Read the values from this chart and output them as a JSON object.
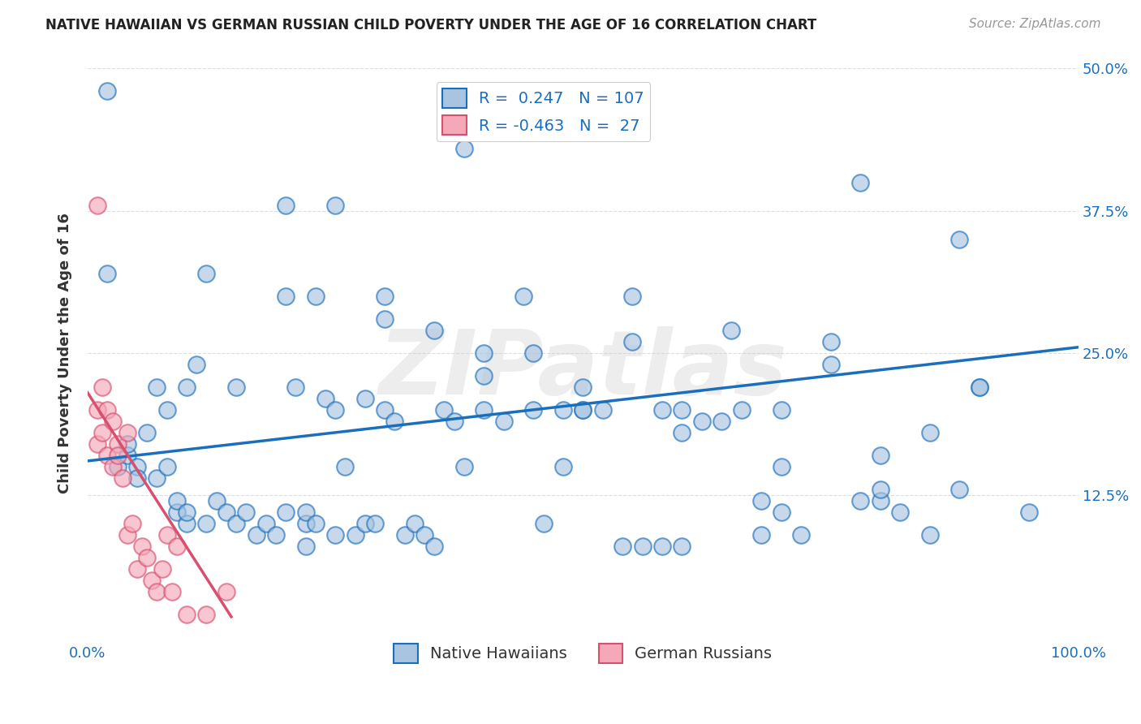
{
  "title": "NATIVE HAWAIIAN VS GERMAN RUSSIAN CHILD POVERTY UNDER THE AGE OF 16 CORRELATION CHART",
  "source": "Source: ZipAtlas.com",
  "ylabel": "Child Poverty Under the Age of 16",
  "xlim": [
    0,
    1.0
  ],
  "ylim": [
    0,
    0.5
  ],
  "xticks": [
    0.0,
    0.125,
    0.25,
    0.375,
    0.5,
    0.625,
    0.75,
    0.875,
    1.0
  ],
  "xticklabels": [
    "0.0%",
    "",
    "",
    "",
    "",
    "",
    "",
    "",
    "100.0%"
  ],
  "yticks": [
    0.0,
    0.125,
    0.25,
    0.375,
    0.5
  ],
  "yticklabels": [
    "",
    "12.5%",
    "25.0%",
    "37.5%",
    "50.0%"
  ],
  "legend1_r": "0.247",
  "legend1_n": "107",
  "legend2_r": "-0.463",
  "legend2_n": "27",
  "blue_color": "#a8c4e0",
  "pink_color": "#f4a8b8",
  "blue_line_color": "#1a6fbd",
  "pink_line_color": "#d94f6e",
  "title_color": "#222222",
  "axis_label_color": "#333333",
  "watermark": "ZIPatlas",
  "watermark_color": "#cccccc",
  "blue_scatter_x": [
    0.02,
    0.02,
    0.03,
    0.04,
    0.04,
    0.05,
    0.05,
    0.06,
    0.07,
    0.07,
    0.08,
    0.08,
    0.09,
    0.09,
    0.1,
    0.1,
    0.1,
    0.11,
    0.12,
    0.12,
    0.13,
    0.14,
    0.15,
    0.15,
    0.16,
    0.17,
    0.18,
    0.19,
    0.2,
    0.2,
    0.21,
    0.22,
    0.22,
    0.23,
    0.23,
    0.24,
    0.25,
    0.25,
    0.26,
    0.27,
    0.28,
    0.28,
    0.29,
    0.3,
    0.3,
    0.31,
    0.32,
    0.33,
    0.34,
    0.35,
    0.36,
    0.37,
    0.38,
    0.4,
    0.42,
    0.44,
    0.45,
    0.46,
    0.48,
    0.5,
    0.52,
    0.54,
    0.56,
    0.58,
    0.6,
    0.62,
    0.64,
    0.66,
    0.68,
    0.7,
    0.72,
    0.75,
    0.78,
    0.8,
    0.82,
    0.85,
    0.88,
    0.9,
    0.2,
    0.25,
    0.35,
    0.4,
    0.45,
    0.5,
    0.55,
    0.6,
    0.65,
    0.7,
    0.75,
    0.8,
    0.85,
    0.9,
    0.95,
    0.22,
    0.38,
    0.48,
    0.58,
    0.68,
    0.78,
    0.88,
    0.55,
    0.3,
    0.4,
    0.5,
    0.6,
    0.7,
    0.8
  ],
  "blue_scatter_y": [
    0.48,
    0.32,
    0.15,
    0.16,
    0.17,
    0.15,
    0.14,
    0.18,
    0.14,
    0.22,
    0.2,
    0.15,
    0.11,
    0.12,
    0.22,
    0.1,
    0.11,
    0.24,
    0.32,
    0.1,
    0.12,
    0.11,
    0.1,
    0.22,
    0.11,
    0.09,
    0.1,
    0.09,
    0.11,
    0.3,
    0.22,
    0.1,
    0.11,
    0.1,
    0.3,
    0.21,
    0.2,
    0.09,
    0.15,
    0.09,
    0.1,
    0.21,
    0.1,
    0.2,
    0.3,
    0.19,
    0.09,
    0.1,
    0.09,
    0.08,
    0.2,
    0.19,
    0.15,
    0.2,
    0.19,
    0.3,
    0.2,
    0.1,
    0.2,
    0.2,
    0.2,
    0.08,
    0.08,
    0.2,
    0.2,
    0.19,
    0.19,
    0.2,
    0.09,
    0.11,
    0.09,
    0.24,
    0.12,
    0.12,
    0.11,
    0.09,
    0.13,
    0.22,
    0.38,
    0.38,
    0.27,
    0.25,
    0.25,
    0.22,
    0.26,
    0.08,
    0.27,
    0.2,
    0.26,
    0.13,
    0.18,
    0.22,
    0.11,
    0.08,
    0.43,
    0.15,
    0.08,
    0.12,
    0.4,
    0.35,
    0.3,
    0.28,
    0.23,
    0.2,
    0.18,
    0.15,
    0.16
  ],
  "pink_scatter_x": [
    0.01,
    0.01,
    0.01,
    0.015,
    0.015,
    0.02,
    0.02,
    0.025,
    0.025,
    0.03,
    0.03,
    0.035,
    0.04,
    0.04,
    0.045,
    0.05,
    0.055,
    0.06,
    0.065,
    0.07,
    0.075,
    0.08,
    0.085,
    0.09,
    0.1,
    0.12,
    0.14
  ],
  "pink_scatter_y": [
    0.38,
    0.2,
    0.17,
    0.22,
    0.18,
    0.2,
    0.16,
    0.19,
    0.15,
    0.17,
    0.16,
    0.14,
    0.18,
    0.09,
    0.1,
    0.06,
    0.08,
    0.07,
    0.05,
    0.04,
    0.06,
    0.09,
    0.04,
    0.08,
    0.02,
    0.02,
    0.04
  ],
  "blue_trend_x": [
    0.0,
    1.0
  ],
  "blue_trend_y": [
    0.155,
    0.255
  ],
  "pink_trend_x": [
    0.0,
    0.145
  ],
  "pink_trend_y": [
    0.215,
    0.018
  ],
  "background_color": "#ffffff",
  "grid_color": "#dddddd"
}
